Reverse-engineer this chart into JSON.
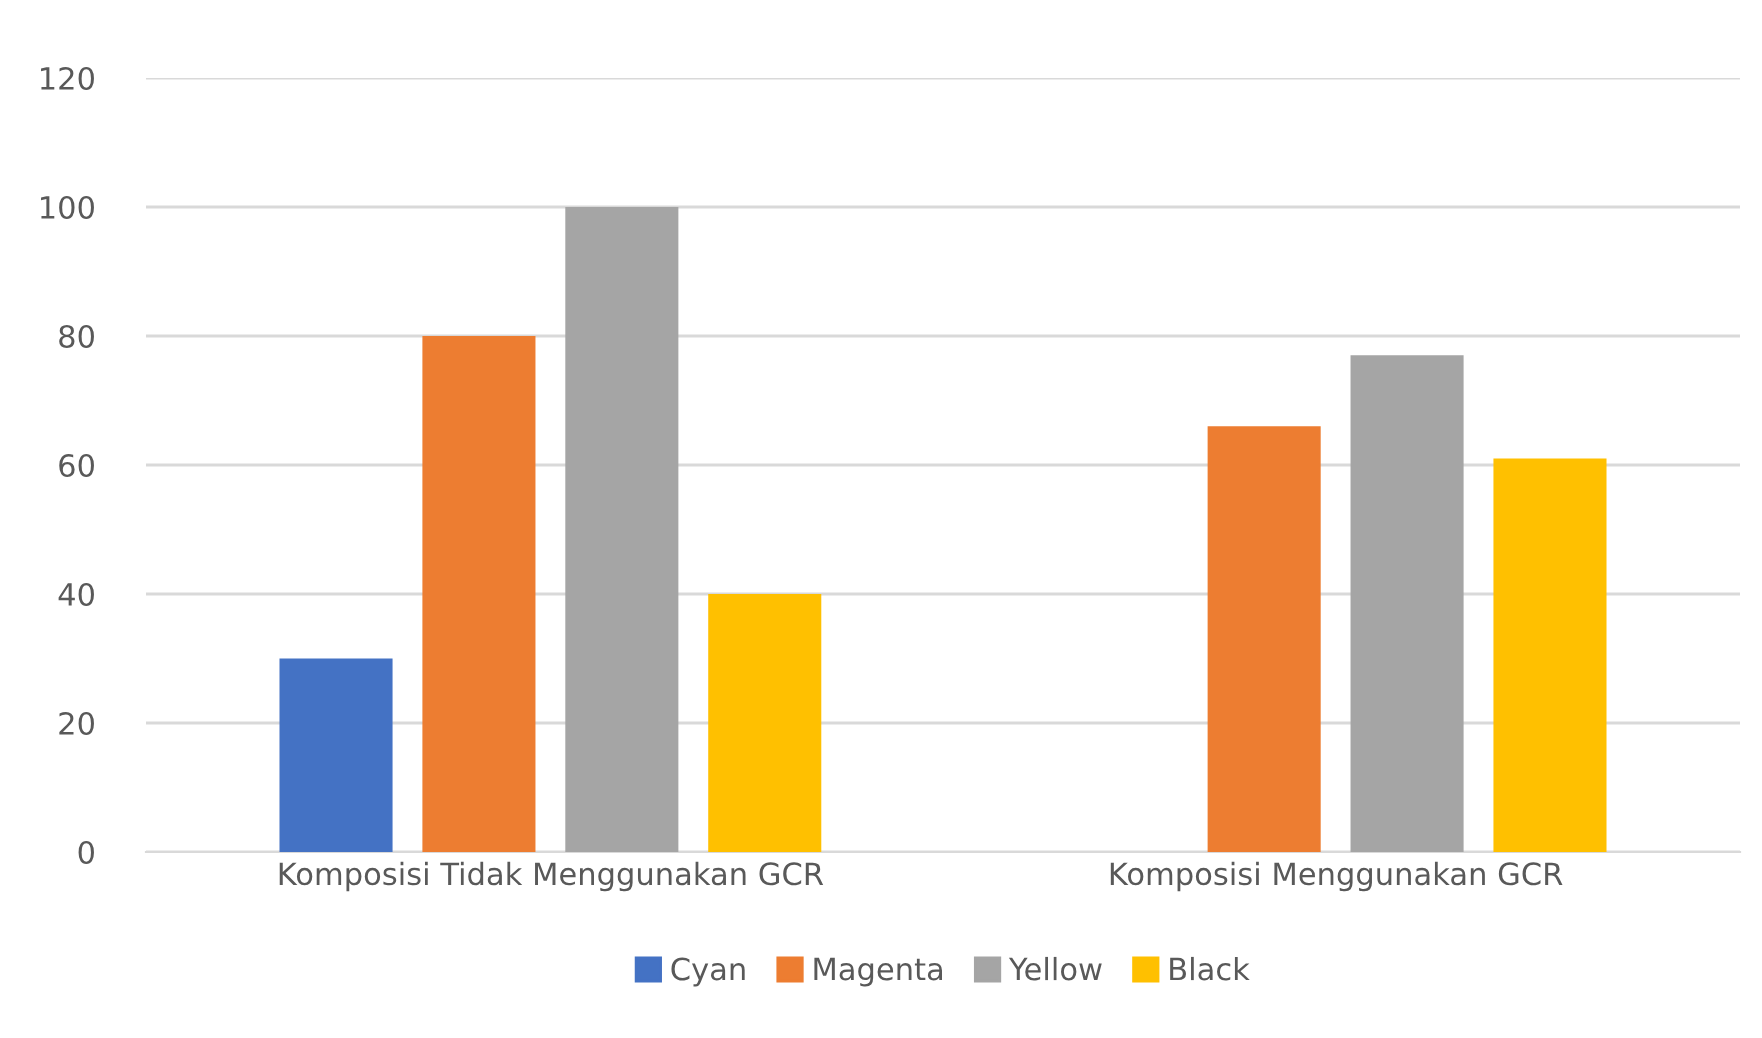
{
  "chart_data": {
    "type": "bar",
    "categories": [
      "Komposisi Tidak Menggunakan GCR",
      "Komposisi Menggunakan GCR"
    ],
    "series": [
      {
        "name": "Cyan",
        "color": "#4472c4",
        "values": [
          30,
          0
        ]
      },
      {
        "name": "Magenta",
        "color": "#ed7d31",
        "values": [
          80,
          66
        ]
      },
      {
        "name": "Yellow",
        "color": "#a5a5a5",
        "values": [
          100,
          77
        ]
      },
      {
        "name": "Black",
        "color": "#ffc000",
        "values": [
          40,
          61
        ]
      }
    ],
    "ylim": [
      0,
      120
    ],
    "yticks": [
      0,
      20,
      40,
      60,
      80,
      100,
      120
    ],
    "grid": "y",
    "legend": "bottom"
  }
}
